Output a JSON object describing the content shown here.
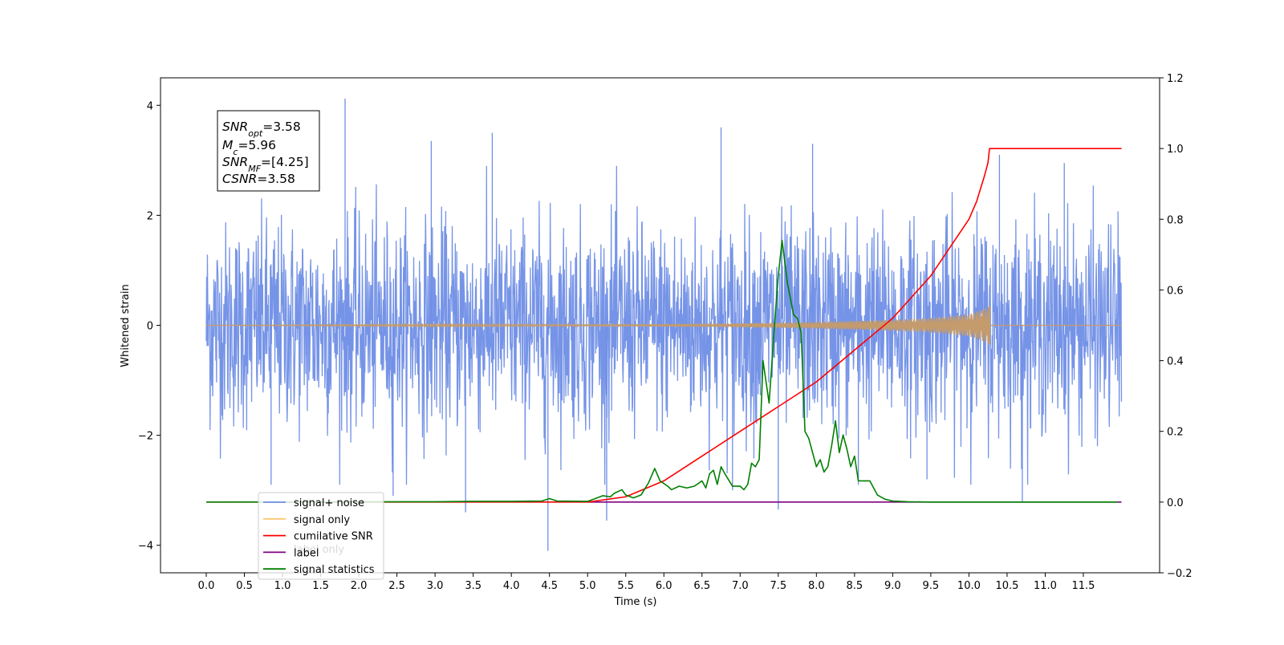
{
  "chart_data": {
    "type": "line",
    "title": "",
    "xlabel": "Time (s)",
    "ylabel": "Whitened strain",
    "y2label": "",
    "xlim": [
      -0.6,
      12.5
    ],
    "ylim": [
      -4.5,
      4.5
    ],
    "y2lim": [
      -0.2,
      1.2
    ],
    "x_ticks": [
      0.0,
      0.5,
      1.0,
      1.5,
      2.0,
      2.5,
      3.0,
      3.5,
      4.0,
      4.5,
      5.0,
      5.5,
      6.0,
      6.5,
      7.0,
      7.5,
      8.0,
      8.5,
      9.0,
      9.5,
      10.0,
      10.5,
      11.0,
      11.5
    ],
    "x_tick_labels": [
      "0.0",
      "0.5",
      "1.0",
      "1.5",
      "2.0",
      "2.5",
      "3.0",
      "3.5",
      "4.0",
      "4.5",
      "5.0",
      "5.5",
      "6.0",
      "6.5",
      "7.0",
      "7.5",
      "8.0",
      "8.5",
      "9.0",
      "9.5",
      "10.0",
      "10.5",
      "11.0",
      "11.5"
    ],
    "y_ticks": [
      -4,
      -2,
      0,
      2,
      4
    ],
    "y_tick_labels": [
      "−4",
      "−2",
      "0",
      "2",
      "4"
    ],
    "y2_ticks": [
      -0.2,
      0.0,
      0.2,
      0.4,
      0.6,
      0.8,
      1.0,
      1.2
    ],
    "y2_tick_labels": [
      "−0.2",
      "0.0",
      "0.2",
      "0.4",
      "0.6",
      "0.8",
      "1.0",
      "1.2"
    ],
    "grid": false,
    "legend_position": "lower-left",
    "legend": [
      {
        "label": "signal+ noise",
        "color": "#6f8ee6"
      },
      {
        "label": "signal only",
        "color": "#ffc870"
      },
      {
        "label": "cumilative SNR",
        "color": "#ff0000"
      },
      {
        "label": "label",
        "color": "#800080"
      },
      {
        "label": "signal statistics",
        "color": "#008000"
      }
    ],
    "hidden_legend_text": "label only",
    "annotation": {
      "lines": [
        {
          "main": "SNR",
          "sub": "opt",
          "rest": "=3.58"
        },
        {
          "main": "M",
          "sub": "c",
          "rest": "=5.96"
        },
        {
          "main": "SNR",
          "sub": "MF",
          "rest": "=[4.25]"
        },
        {
          "main": "CSNR",
          "sub": "",
          "rest": "=3.58"
        }
      ]
    },
    "series": [
      {
        "name": "signal+ noise",
        "axis": "left",
        "color": "#6f8ee6",
        "description": "Whitened noisy strain, 0 to 12 s",
        "x_range": [
          0.0,
          12.0
        ],
        "typical_band": [
          -2.2,
          2.2
        ],
        "spikes": [
          [
            1.82,
            4.12
          ],
          [
            3.4,
            -3.4
          ],
          [
            4.48,
            -4.1
          ],
          [
            6.75,
            3.6
          ],
          [
            5.25,
            -3.55
          ],
          [
            10.7,
            -3.2
          ],
          [
            0.85,
            -2.9
          ],
          [
            7.95,
            3.3
          ],
          [
            2.45,
            -3.1
          ],
          [
            3.75,
            3.5
          ],
          [
            9.45,
            -2.8
          ],
          [
            10.4,
            3.1
          ],
          [
            7.5,
            -3.35
          ],
          [
            6.9,
            -3.0
          ],
          [
            2.95,
            3.35
          ],
          [
            11.25,
            2.95
          ],
          [
            8.55,
            -2.9
          ]
        ]
      },
      {
        "name": "signal only",
        "axis": "left",
        "color": "#c49b6c",
        "description": "Chirp signal, amplitude growing until merger at 10.27 s",
        "x_range": [
          0.0,
          12.0
        ],
        "envelope": [
          [
            0.0,
            0.0
          ],
          [
            4.0,
            0.01
          ],
          [
            6.0,
            0.02
          ],
          [
            7.0,
            0.035
          ],
          [
            8.0,
            0.06
          ],
          [
            9.0,
            0.1
          ],
          [
            9.5,
            0.13
          ],
          [
            10.0,
            0.2
          ],
          [
            10.2,
            0.3
          ],
          [
            10.27,
            0.35
          ]
        ],
        "merger_time": 10.27
      },
      {
        "name": "cumilative SNR",
        "axis": "right",
        "color": "#ff0000",
        "x": [
          0.0,
          4.5,
          5.0,
          5.5,
          6.0,
          6.5,
          7.0,
          7.5,
          8.0,
          8.5,
          9.0,
          9.5,
          10.0,
          10.1,
          10.2,
          10.25,
          10.27,
          12.0
        ],
        "values": [
          0.0,
          0.0,
          0.0,
          0.015,
          0.06,
          0.13,
          0.2,
          0.27,
          0.34,
          0.43,
          0.52,
          0.64,
          0.8,
          0.85,
          0.92,
          0.96,
          1.0,
          1.0
        ]
      },
      {
        "name": "label",
        "axis": "right",
        "color": "#800080",
        "x": [
          5.0,
          12.0
        ],
        "values": [
          0.0,
          0.0
        ]
      },
      {
        "name": "signal statistics",
        "axis": "right",
        "color": "#008000",
        "x": [
          0.0,
          3.0,
          3.5,
          4.0,
          4.4,
          4.5,
          4.6,
          5.0,
          5.1,
          5.2,
          5.3,
          5.35,
          5.45,
          5.5,
          5.6,
          5.7,
          5.8,
          5.88,
          5.95,
          6.05,
          6.1,
          6.2,
          6.3,
          6.4,
          6.5,
          6.55,
          6.6,
          6.65,
          6.7,
          6.75,
          6.8,
          6.9,
          7.0,
          7.05,
          7.1,
          7.15,
          7.2,
          7.25,
          7.3,
          7.38,
          7.45,
          7.5,
          7.55,
          7.62,
          7.7,
          7.75,
          7.8,
          7.85,
          7.9,
          7.95,
          8.0,
          8.05,
          8.1,
          8.15,
          8.2,
          8.25,
          8.3,
          8.35,
          8.4,
          8.45,
          8.5,
          8.55,
          8.6,
          8.7,
          8.8,
          8.9,
          9.0,
          9.2,
          9.5,
          10.0,
          11.0,
          11.95
        ],
        "values": [
          0.0,
          0.001,
          0.002,
          0.002,
          0.003,
          0.01,
          0.003,
          0.002,
          0.01,
          0.018,
          0.015,
          0.025,
          0.035,
          0.02,
          0.012,
          0.02,
          0.055,
          0.095,
          0.06,
          0.045,
          0.035,
          0.045,
          0.04,
          0.045,
          0.06,
          0.04,
          0.08,
          0.09,
          0.05,
          0.1,
          0.08,
          0.045,
          0.045,
          0.035,
          0.05,
          0.11,
          0.1,
          0.12,
          0.4,
          0.28,
          0.5,
          0.64,
          0.74,
          0.62,
          0.53,
          0.52,
          0.48,
          0.2,
          0.18,
          0.14,
          0.1,
          0.12,
          0.085,
          0.1,
          0.16,
          0.23,
          0.14,
          0.19,
          0.15,
          0.1,
          0.13,
          0.06,
          0.06,
          0.06,
          0.02,
          0.008,
          0.003,
          0.001,
          0.0,
          0.0,
          0.0,
          0.0
        ]
      }
    ]
  }
}
